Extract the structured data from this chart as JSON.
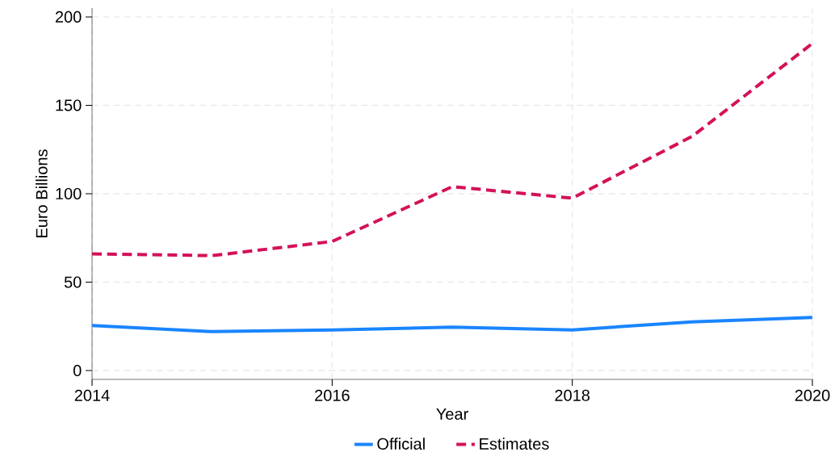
{
  "chart_data": {
    "type": "line",
    "xlabel": "Year",
    "ylabel": "Euro Billions",
    "x": [
      2014,
      2015,
      2016,
      2017,
      2018,
      2019,
      2020
    ],
    "series": [
      {
        "name": "Official",
        "color": "#1a85ff",
        "line_style": "solid",
        "values": [
          25.5,
          22,
          23,
          24.5,
          23,
          27.5,
          30
        ]
      },
      {
        "name": "Estimates",
        "color": "#d41159",
        "line_style": "dashed",
        "values": [
          66,
          65,
          73,
          104,
          97.5,
          132.5,
          185
        ]
      }
    ],
    "xlim": [
      2014,
      2020
    ],
    "xticks": [
      2014,
      2016,
      2018,
      2020
    ],
    "ylim": [
      -5,
      205
    ],
    "yticks": [
      0,
      50,
      100,
      150,
      200
    ],
    "grid": true,
    "legend": "bottom",
    "marker": "none"
  }
}
